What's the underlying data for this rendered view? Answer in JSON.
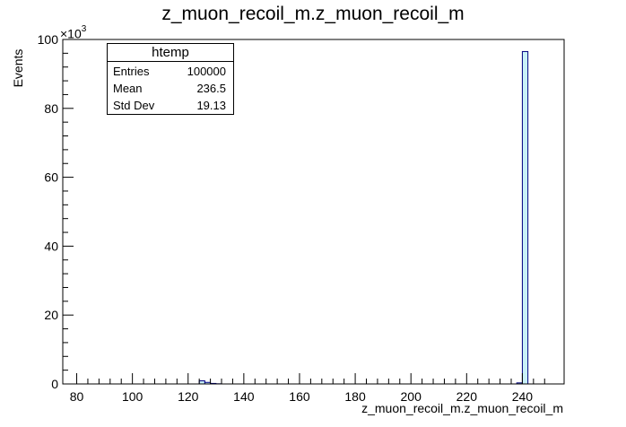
{
  "chart_data": {
    "type": "bar",
    "title": "z_muon_recoil_m.z_muon_recoil_m",
    "xlabel": "z_muon_recoil_m.z_muon_recoil_m",
    "ylabel": "Events",
    "y_exponent_base": "×10",
    "y_exponent_power": "3",
    "xlim": [
      75,
      255
    ],
    "ylim": [
      0,
      100
    ],
    "x_ticks": [
      "80",
      "100",
      "120",
      "140",
      "160",
      "180",
      "200",
      "220",
      "240"
    ],
    "y_ticks": [
      "0",
      "20",
      "40",
      "60",
      "80",
      "100"
    ],
    "bin_width": 2,
    "bins": [
      {
        "x0": 124,
        "value": 0.9
      },
      {
        "x0": 126,
        "value": 0.45
      },
      {
        "x0": 128,
        "value": 0.15
      },
      {
        "x0": 130,
        "value": 0.05
      },
      {
        "x0": 238,
        "value": 0.3
      },
      {
        "x0": 240,
        "value": 96.5
      }
    ],
    "legend": "none",
    "grid": false,
    "fill_color": "#c9f1f8",
    "line_color": "#000080"
  },
  "statbox": {
    "title": "htemp",
    "rows": [
      {
        "label": "Entries",
        "value": "100000"
      },
      {
        "label": "Mean",
        "value": "236.5"
      },
      {
        "label": "Std Dev",
        "value": "19.13"
      }
    ]
  }
}
